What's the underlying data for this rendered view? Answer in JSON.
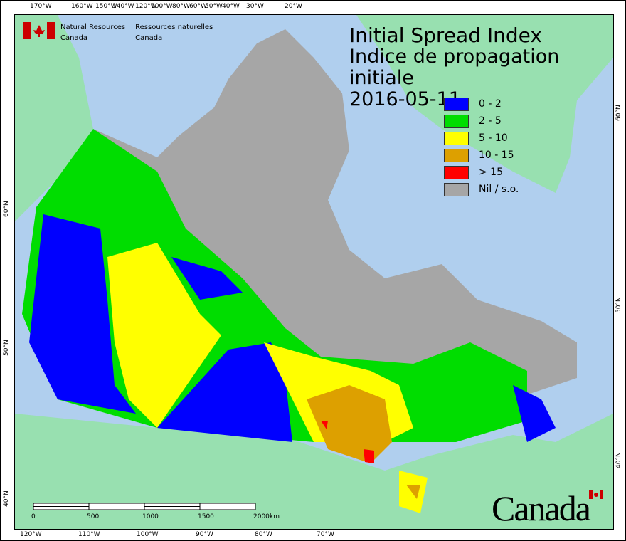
{
  "agency": {
    "en_line1": "Natural Resources",
    "en_line2": "Canada",
    "fr_line1": "Ressources naturelles",
    "fr_line2": "Canada"
  },
  "title": {
    "en": "Initial Spread Index",
    "fr": "Indice de propagation initiale",
    "date": "2016-05-11"
  },
  "legend": [
    {
      "label": "0 - 2",
      "color": "#0000ff"
    },
    {
      "label": "2 - 5",
      "color": "#00dd00"
    },
    {
      "label": "5 - 10",
      "color": "#ffff00"
    },
    {
      "label": "10 - 15",
      "color": "#dda000"
    },
    {
      "label": "> 15",
      "color": "#ff0000"
    },
    {
      "label": "Nil / s.o.",
      "color": "#a6a6a6"
    }
  ],
  "top_ticks": [
    "170°W",
    "160°W",
    "150°W",
    "140°W",
    "120°W",
    "100°W",
    "80°W",
    "60°W",
    "50°W",
    "40°W",
    "30°W",
    "20°W"
  ],
  "bottom_ticks": [
    "120°W",
    "110°W",
    "100°W",
    "90°W",
    "80°W",
    "70°W"
  ],
  "left_ticks": [
    "60°N",
    "50°N",
    "40°N"
  ],
  "right_ticks": [
    "60°N",
    "50°N",
    "40°N"
  ],
  "scale": {
    "labels": [
      "0",
      "500",
      "1000",
      "1500",
      "2000"
    ],
    "unit": "km"
  },
  "wordmark": "Canada",
  "colors": {
    "water": "#b0cfee",
    "land": "#98e0b0",
    "nil": "#a6a6a6"
  }
}
